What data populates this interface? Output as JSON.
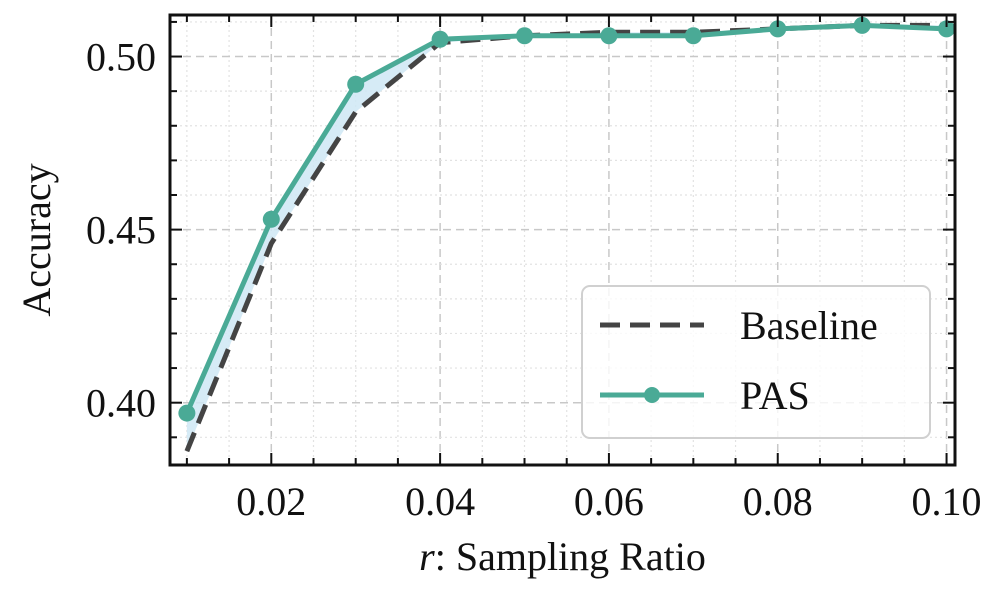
{
  "chart_data": {
    "type": "line",
    "title": "",
    "xlabel_var": "r",
    "xlabel_rest": ": Sampling Ratio",
    "ylabel": "Accuracy",
    "x": [
      0.01,
      0.02,
      0.03,
      0.04,
      0.05,
      0.06,
      0.07,
      0.08,
      0.09,
      0.1
    ],
    "xlim": [
      0.008,
      0.101
    ],
    "ylim": [
      0.382,
      0.512
    ],
    "xticks": [
      0.02,
      0.04,
      0.06,
      0.08,
      0.1
    ],
    "xtick_labels": [
      "0.02",
      "0.04",
      "0.06",
      "0.08",
      "0.10"
    ],
    "yticks": [
      0.4,
      0.45,
      0.5
    ],
    "ytick_labels": [
      "0.40",
      "0.45",
      "0.50"
    ],
    "grid": true,
    "legend_position": "lower-right",
    "series": [
      {
        "name": "Baseline",
        "style": "dashed",
        "color": "#444444",
        "values": [
          0.386,
          0.446,
          0.484,
          0.504,
          0.506,
          0.507,
          0.507,
          0.508,
          0.509,
          0.509
        ]
      },
      {
        "name": "PAS",
        "style": "solid-marker",
        "color": "#4aaa96",
        "values": [
          0.397,
          0.453,
          0.492,
          0.505,
          0.506,
          0.506,
          0.506,
          0.508,
          0.509,
          0.508
        ]
      }
    ],
    "fill_between_color": "#cfe8f5"
  }
}
